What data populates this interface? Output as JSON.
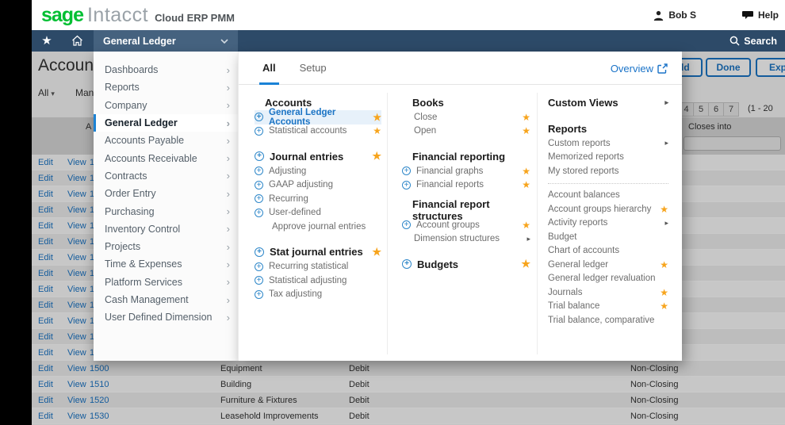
{
  "brand": {
    "sage": "sage",
    "product": "Intacct",
    "suffix": "Cloud ERP PMM"
  },
  "header": {
    "user": "Bob S",
    "help": "Help"
  },
  "navbar": {
    "module": "General Ledger",
    "search": "Search"
  },
  "colors": {
    "navbar": "#2d4a68",
    "accent_blue": "#1a73c4",
    "star_orange": "#f7a41c",
    "sage_green": "#00bf32"
  },
  "page": {
    "title": "Accounts",
    "filter": "All",
    "manage": "Mana",
    "add": "Add",
    "done": "Done",
    "export": "Export",
    "pages": [
      "4",
      "5",
      "6",
      "7"
    ],
    "range": "(1 - 20",
    "col_header_left": "A",
    "col_header_right": "Closes into"
  },
  "sidebar": {
    "items": [
      {
        "label": "Dashboards"
      },
      {
        "label": "Reports"
      },
      {
        "label": "Company"
      },
      {
        "label": "General Ledger",
        "active": true
      },
      {
        "label": "Accounts Payable"
      },
      {
        "label": "Accounts Receivable"
      },
      {
        "label": "Contracts"
      },
      {
        "label": "Order Entry"
      },
      {
        "label": "Purchasing"
      },
      {
        "label": "Inventory Control"
      },
      {
        "label": "Projects"
      },
      {
        "label": "Time & Expenses"
      },
      {
        "label": "Platform Services"
      },
      {
        "label": "Cash Management"
      },
      {
        "label": "User Defined Dimension"
      }
    ]
  },
  "menu": {
    "tab_all": "All",
    "tab_setup": "Setup",
    "overview": "Overview",
    "col1": [
      {
        "title": "Accounts",
        "items": [
          {
            "label": "General Ledger Accounts",
            "plus": true,
            "star": true,
            "highlight": true
          },
          {
            "label": "Statistical accounts",
            "plus": true,
            "star": true
          }
        ]
      },
      {
        "title": "Journal entries",
        "plus": true,
        "star": true,
        "items": [
          {
            "label": "Adjusting",
            "plus": true
          },
          {
            "label": "GAAP adjusting",
            "plus": true
          },
          {
            "label": "Recurring",
            "plus": true
          },
          {
            "label": "User-defined",
            "plus": true
          },
          {
            "label": "Approve journal entries"
          }
        ]
      },
      {
        "title": "Stat journal entries",
        "plus": true,
        "star": true,
        "items": [
          {
            "label": "Recurring statistical",
            "plus": true
          },
          {
            "label": "Statistical adjusting",
            "plus": true
          },
          {
            "label": "Tax adjusting",
            "plus": true
          }
        ]
      }
    ],
    "col2": [
      {
        "title": "Books",
        "items": [
          {
            "label": "Close",
            "star": true
          },
          {
            "label": "Open",
            "star": true
          }
        ]
      },
      {
        "title": "Financial reporting",
        "items": [
          {
            "label": "Financial graphs",
            "plus": true,
            "star": true
          },
          {
            "label": "Financial reports",
            "plus": true,
            "star": true
          }
        ]
      },
      {
        "title": "Financial report structures",
        "items": [
          {
            "label": "Account groups",
            "plus": true,
            "star": true
          },
          {
            "label": "Dimension structures",
            "arrow": true
          }
        ]
      },
      {
        "title": "Budgets",
        "plus": true,
        "star": true,
        "items": []
      }
    ],
    "col3": [
      {
        "title": "Custom Views",
        "arrow": true,
        "items": []
      },
      {
        "title": "Reports",
        "items": [
          {
            "label": "Custom reports",
            "arrow": true
          },
          {
            "label": "Memorized reports"
          },
          {
            "label": "My stored reports"
          },
          {
            "divider": true
          },
          {
            "label": "Account balances"
          },
          {
            "label": "Account groups hierarchy",
            "star": true
          },
          {
            "label": "Activity reports",
            "arrow": true
          },
          {
            "label": "Budget"
          },
          {
            "label": "Chart of accounts"
          },
          {
            "label": "General ledger",
            "star": true
          },
          {
            "label": "General ledger revaluation"
          },
          {
            "label": "Journals",
            "star": true
          },
          {
            "label": "Trial balance",
            "star": true
          },
          {
            "label": "Trial balance, comparative"
          }
        ]
      }
    ]
  },
  "table": {
    "edit": "Edit",
    "view": "View",
    "partial_number": "1",
    "partial_rows": 13,
    "rows": [
      {
        "number": "1500",
        "title": "Equipment",
        "normal_balance": "Debit",
        "closing": "Non-Closing"
      },
      {
        "number": "1510",
        "title": "Building",
        "normal_balance": "Debit",
        "closing": "Non-Closing"
      },
      {
        "number": "1520",
        "title": "Furniture & Fixtures",
        "normal_balance": "Debit",
        "closing": "Non-Closing"
      },
      {
        "number": "1530",
        "title": "Leasehold Improvements",
        "normal_balance": "Debit",
        "closing": "Non-Closing"
      }
    ]
  }
}
